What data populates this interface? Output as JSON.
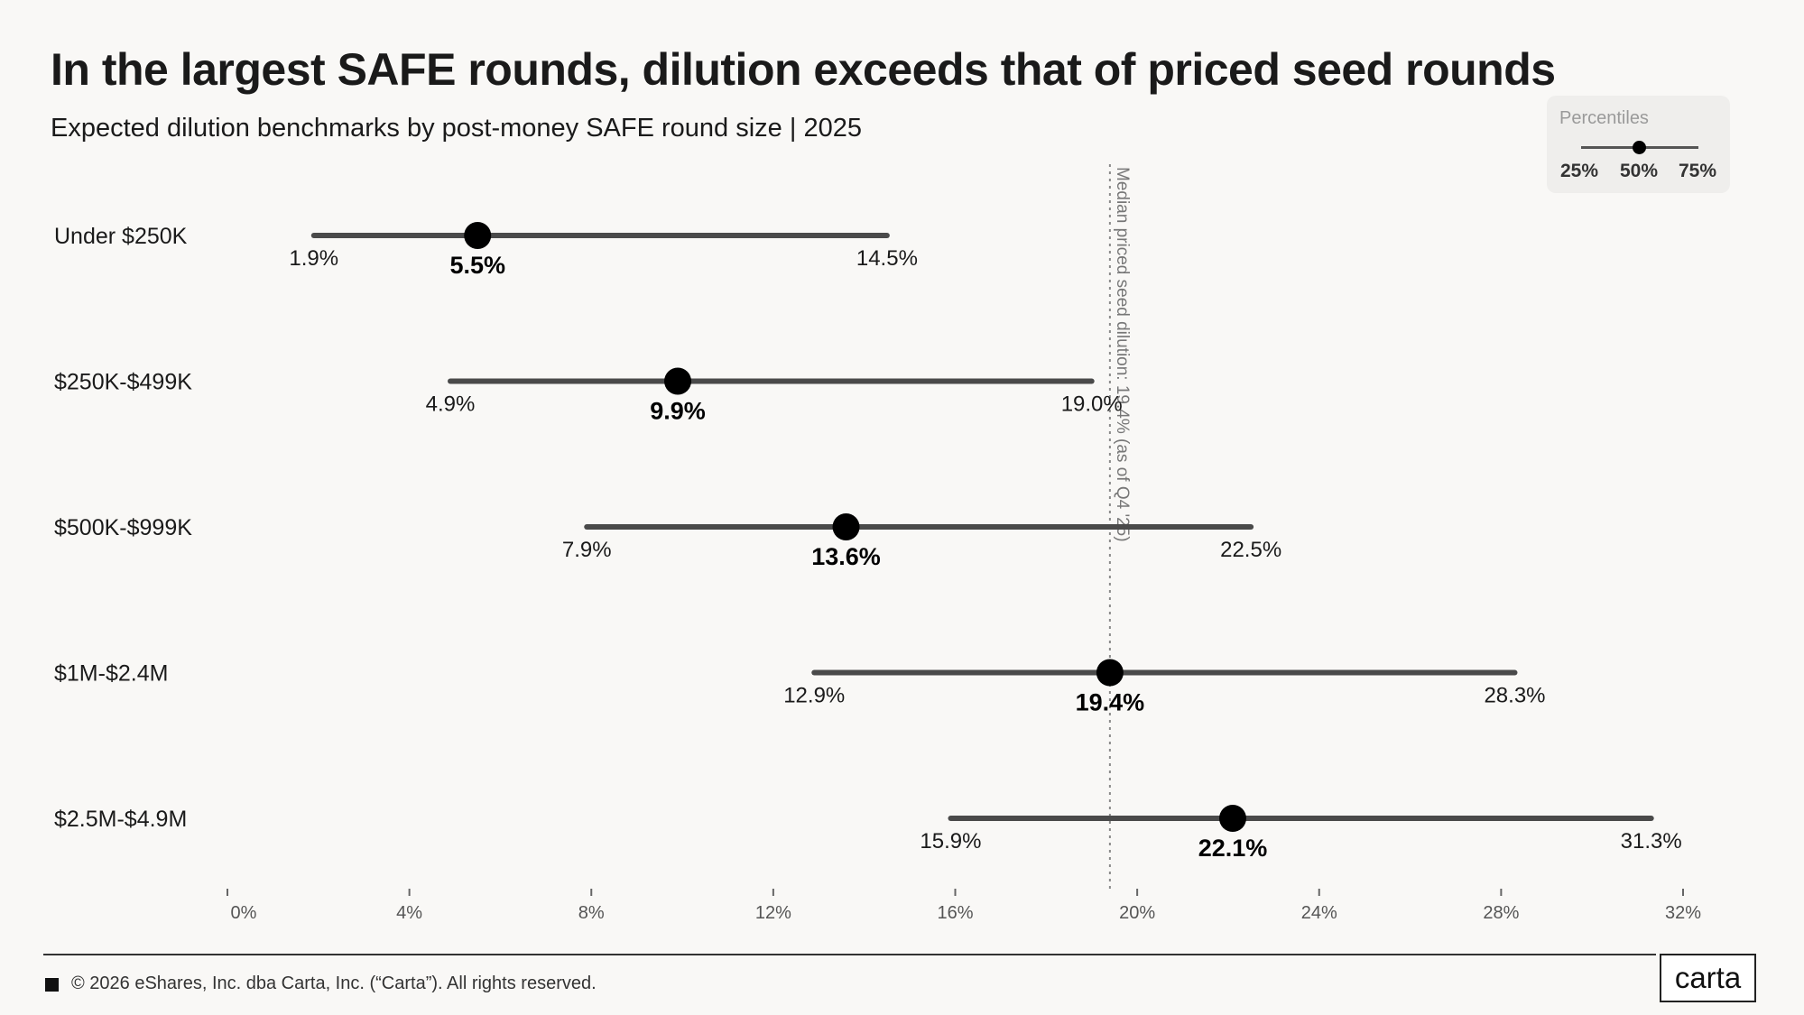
{
  "title": "In the largest SAFE rounds, dilution exceeds that of priced seed rounds",
  "subtitle": "Expected dilution benchmarks by post-money SAFE round size |  2025",
  "legend": {
    "title": "Percentiles",
    "labels": [
      "25%",
      "50%",
      "75%"
    ]
  },
  "chart_data": {
    "type": "range-dot",
    "categories": [
      "Under $250K",
      "$250K-$499K",
      "$500K-$999K",
      "$1M-$2.4M",
      "$2.5M-$4.9M"
    ],
    "series": [
      {
        "name": "25%",
        "values": [
          1.9,
          4.9,
          7.9,
          12.9,
          15.9
        ]
      },
      {
        "name": "50%",
        "values": [
          5.5,
          9.9,
          13.6,
          19.4,
          22.1
        ]
      },
      {
        "name": "75%",
        "values": [
          14.5,
          19.0,
          22.5,
          28.3,
          31.3
        ]
      }
    ],
    "value_labels": {
      "p25": [
        "1.9%",
        "4.9%",
        "7.9%",
        "12.9%",
        "15.9%"
      ],
      "p50": [
        "5.5%",
        "9.9%",
        "13.6%",
        "19.4%",
        "22.1%"
      ],
      "p75": [
        "14.5%",
        "19.0%",
        "22.5%",
        "28.3%",
        "31.3%"
      ]
    },
    "xlim": [
      0,
      32
    ],
    "xticks": [
      0,
      4,
      8,
      12,
      16,
      20,
      24,
      28,
      32
    ],
    "xtick_labels": [
      "0%",
      "4%",
      "8%",
      "12%",
      "16%",
      "20%",
      "24%",
      "28%",
      "32%"
    ],
    "reference_line": {
      "value": 19.4,
      "label": "Median priced seed dilution: 19.4% (as of Q4 '25)"
    },
    "grid": false
  },
  "colors": {
    "background": "#f9f8f6",
    "range_line": "#4a4a4a",
    "dot": "#000000",
    "text": "#1a1a1a",
    "reference": "#8a8a8a",
    "legend_bg": "#efeeec"
  },
  "footer": {
    "copyright": "© 2026 eShares, Inc. dba Carta, Inc. (“Carta”). All rights reserved.",
    "brand": "carta"
  }
}
